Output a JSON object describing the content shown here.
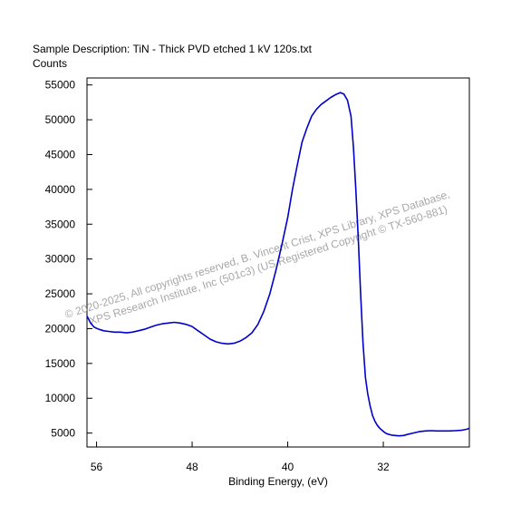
{
  "title": "Sample Description:  TiN - Thick PVD etched 1 kV 120s.txt",
  "ylabel": "Counts",
  "xlabel": "Binding Energy, (eV)",
  "watermark_line1": "© 2020-2025,  All copyrights reserved,   B. Vincent Crist,  XPS Library, XPS Database,",
  "watermark_line2": "XPS Research Institute, Inc (501c3)   (US Registered Copyright © TX-560-881)",
  "colors": {
    "series": "#0000cc",
    "watermark": "#a8a8a8"
  },
  "chart_data": {
    "type": "line",
    "x_reversed": true,
    "xlim": [
      56.8,
      24.8
    ],
    "ylim": [
      3000,
      56000
    ],
    "xticks": [
      56,
      48,
      40,
      32
    ],
    "yticks": [
      5000,
      10000,
      15000,
      20000,
      25000,
      30000,
      35000,
      40000,
      45000,
      50000,
      55000
    ],
    "grid": false,
    "series": [
      {
        "x": [
          56.8,
          56.5,
          56.2,
          55.8,
          55.4,
          55.0,
          54.5,
          54.0,
          53.5,
          53.0,
          52.5,
          52.0,
          51.5,
          51.0,
          50.5,
          50.0,
          49.5,
          49.0,
          48.5,
          48.0,
          47.5,
          47.0,
          46.5,
          46.0,
          45.5,
          45.0,
          44.5,
          44.0,
          43.5,
          43.0,
          42.5,
          42.0,
          41.5,
          41.0,
          40.5,
          40.0,
          39.6,
          39.2,
          38.8,
          38.4,
          38.0,
          37.6,
          37.2,
          36.8,
          36.4,
          36.0,
          35.6,
          35.3,
          35.0,
          34.7,
          34.5,
          34.3,
          34.1,
          33.9,
          33.7,
          33.5,
          33.3,
          33.1,
          32.9,
          32.7,
          32.5,
          32.3,
          32.1,
          31.9,
          31.7,
          31.5,
          31.3,
          31.0,
          30.7,
          30.3,
          30.0,
          29.5,
          29.0,
          28.5,
          28.0,
          27.5,
          27.0,
          26.5,
          26.0,
          25.5,
          25.0,
          24.8
        ],
        "values": [
          21800,
          20800,
          20200,
          19900,
          19700,
          19600,
          19500,
          19500,
          19400,
          19500,
          19700,
          19900,
          20200,
          20500,
          20700,
          20800,
          20900,
          20800,
          20600,
          20300,
          19700,
          19100,
          18500,
          18100,
          17900,
          17800,
          17900,
          18200,
          18700,
          19400,
          20600,
          22500,
          25000,
          28300,
          32000,
          36000,
          40000,
          43500,
          46800,
          48800,
          50500,
          51500,
          52200,
          52700,
          53200,
          53600,
          53900,
          53700,
          52800,
          50500,
          46000,
          40000,
          33000,
          25000,
          18000,
          13000,
          10600,
          8900,
          7500,
          6700,
          6100,
          5700,
          5400,
          5100,
          4900,
          4800,
          4700,
          4650,
          4600,
          4650,
          4800,
          5000,
          5200,
          5300,
          5350,
          5300,
          5300,
          5300,
          5350,
          5400,
          5550,
          5700
        ]
      }
    ]
  }
}
